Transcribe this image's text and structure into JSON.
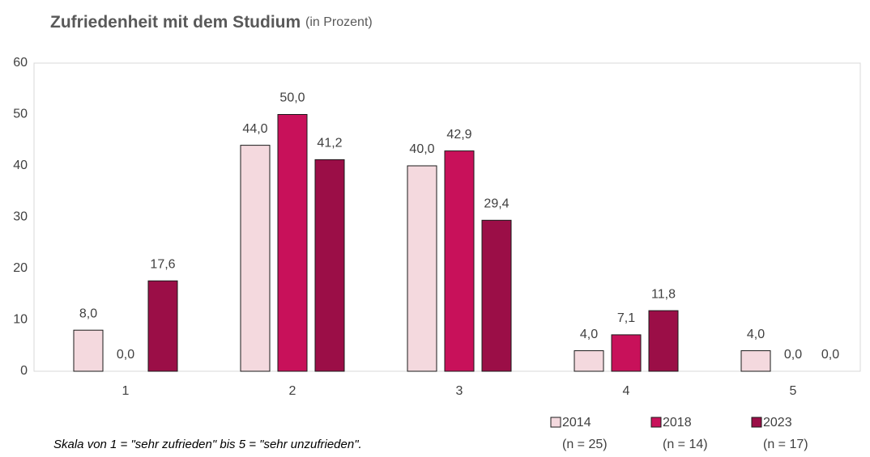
{
  "chart_data": {
    "type": "bar",
    "title": "Zufriedenheit mit dem Studium",
    "subtitle": "(in Prozent)",
    "footnote": "Skala von 1 = \"sehr zufrieden\" bis 5 = \"sehr unzufrieden\".",
    "categories": [
      "1",
      "2",
      "3",
      "4",
      "5"
    ],
    "series": [
      {
        "name": "2014",
        "sample": "(n = 25)",
        "color": "#f4d9de",
        "values": [
          8.0,
          44.0,
          40.0,
          4.0,
          4.0
        ],
        "value_labels": [
          "8,0",
          "44,0",
          "40,0",
          "4,0",
          "4,0"
        ]
      },
      {
        "name": "2018",
        "sample": "(n = 14)",
        "color": "#c8115a",
        "values": [
          0.0,
          50.0,
          42.9,
          7.1,
          0.0
        ],
        "value_labels": [
          "0,0",
          "50,0",
          "42,9",
          "7,1",
          "0,0"
        ]
      },
      {
        "name": "2023",
        "sample": "(n = 17)",
        "color": "#9b0e47",
        "values": [
          17.6,
          41.2,
          29.4,
          11.8,
          0.0
        ],
        "value_labels": [
          "17,6",
          "41,2",
          "29,4",
          "11,8",
          "0,0"
        ]
      }
    ],
    "ylim": [
      0,
      60
    ],
    "yticks": [
      0,
      10,
      20,
      30,
      40,
      50,
      60
    ],
    "grid": false,
    "legend": "bottom-right"
  }
}
